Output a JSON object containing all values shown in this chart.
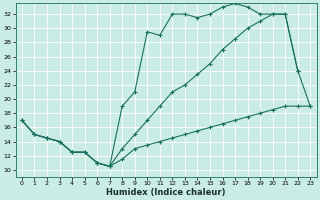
{
  "xlabel": "Humidex (Indice chaleur)",
  "xlim": [
    -0.5,
    23.5
  ],
  "ylim": [
    9.0,
    33.5
  ],
  "xticks": [
    0,
    1,
    2,
    3,
    4,
    5,
    6,
    7,
    8,
    9,
    10,
    11,
    12,
    13,
    14,
    15,
    16,
    17,
    18,
    19,
    20,
    21,
    22,
    23
  ],
  "yticks": [
    10,
    12,
    14,
    16,
    18,
    20,
    22,
    24,
    26,
    28,
    30,
    32
  ],
  "bg_color": "#c9ece4",
  "line_color": "#1a7060",
  "grid_color": "#ffffff",
  "line1_x": [
    0,
    1,
    2,
    3,
    4,
    5,
    6,
    7,
    8,
    9,
    10,
    11,
    12,
    13,
    14,
    15,
    16,
    17,
    18,
    19,
    20,
    21,
    22,
    23
  ],
  "line1_y": [
    17,
    15,
    14.5,
    14,
    12.5,
    12.5,
    11,
    10.5,
    11.5,
    13,
    13.5,
    14,
    14.5,
    15,
    15.5,
    16,
    16.5,
    17,
    17.5,
    18,
    18.5,
    19,
    19,
    19
  ],
  "line2_x": [
    0,
    1,
    2,
    3,
    4,
    5,
    6,
    7,
    8,
    9,
    10,
    11,
    12,
    13,
    14,
    15,
    16,
    17,
    18,
    19,
    20,
    21,
    22
  ],
  "line2_y": [
    17,
    15,
    14.5,
    14,
    12.5,
    12.5,
    11,
    10.5,
    19,
    21,
    29.5,
    29,
    32,
    32,
    31.5,
    32,
    33,
    33.5,
    33,
    32,
    32,
    32,
    24
  ],
  "line3_x": [
    0,
    1,
    2,
    3,
    4,
    5,
    6,
    7,
    8,
    9,
    10,
    11,
    12,
    13,
    14,
    15,
    16,
    17,
    18,
    19,
    20,
    21,
    22,
    23
  ],
  "line3_y": [
    17,
    15,
    14.5,
    14,
    12.5,
    12.5,
    11,
    10.5,
    13,
    15,
    17,
    19,
    21,
    22,
    23.5,
    25,
    27,
    28.5,
    30,
    31,
    32,
    32,
    24,
    19
  ]
}
